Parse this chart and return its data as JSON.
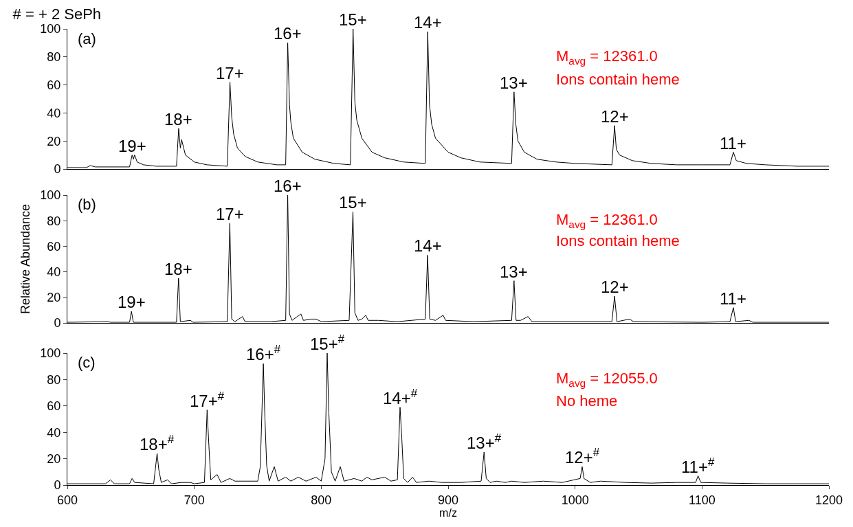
{
  "chart_data": [
    {
      "type": "line",
      "title": "# = + 2 SePh",
      "xlim": [
        600,
        1200
      ],
      "ylim": [
        0,
        100
      ],
      "yticks": [
        0,
        20,
        40,
        60,
        80,
        100
      ],
      "tick_labels": "y",
      "marker": "none",
      "line_style": "solid",
      "series": [
        {
          "color": "#000000",
          "x": [
            600,
            615,
            618,
            622,
            649,
            651,
            652,
            653,
            655,
            660,
            670,
            686,
            687.7,
            689,
            690,
            693,
            700,
            710,
            726,
            728.1,
            729.5,
            731,
            734,
            740,
            750,
            765,
            772,
            773.6,
            775,
            776,
            778,
            785,
            795,
            810,
            823,
            825.1,
            826.5,
            828,
            832,
            840,
            850,
            865,
            882,
            883.9,
            885.3,
            887,
            890,
            900,
            910,
            925,
            950,
            951.9,
            953.3,
            955,
            960,
            970,
            985,
            1000,
            1029,
            1031.1,
            1032.5,
            1035,
            1045,
            1060,
            1080,
            1100,
            1122,
            1124.7,
            1127,
            1135,
            1150,
            1175,
            1200
          ],
          "values": [
            1,
            1,
            2.5,
            1.5,
            1.5,
            10,
            7,
            10,
            5,
            3,
            2,
            2,
            29,
            15,
            21,
            10,
            5,
            3,
            2,
            62,
            37,
            25,
            15,
            9,
            5,
            3,
            3,
            90,
            46,
            34,
            22,
            12,
            7,
            4,
            3,
            100,
            48,
            35,
            22,
            12,
            8,
            5,
            4,
            98,
            46,
            32,
            22,
            12,
            8,
            5,
            4,
            55,
            32,
            20,
            12,
            7,
            5,
            4,
            3,
            31,
            14,
            10,
            6,
            4,
            3,
            3,
            3,
            12,
            6,
            4,
            3,
            2,
            2
          ]
        }
      ],
      "annotations": [
        "(a)",
        "M$_{avg}$ = 12361.0",
        "Ions contain heme",
        {
          "text": "19+",
          "x": 651,
          "y": 10
        },
        {
          "text": "18+",
          "x": 687.7,
          "y": 29
        },
        {
          "text": "17+",
          "x": 728.1,
          "y": 62
        },
        {
          "text": "16+",
          "x": 773.6,
          "y": 90
        },
        {
          "text": "15+",
          "x": 825.1,
          "y": 100
        },
        {
          "text": "14+",
          "x": 883.9,
          "y": 98
        },
        {
          "text": "13+",
          "x": 951.9,
          "y": 55
        },
        {
          "text": "12+",
          "x": 1031.1,
          "y": 31
        },
        {
          "text": "11+",
          "x": 1124.7,
          "y": 12
        }
      ]
    },
    {
      "type": "line",
      "ylabel": "Relative Abundance",
      "xlim": [
        600,
        1200
      ],
      "ylim": [
        0,
        100
      ],
      "yticks": [
        0,
        20,
        40,
        60,
        80,
        100
      ],
      "tick_labels": "y",
      "marker": "none",
      "line_style": "solid",
      "series": [
        {
          "color": "#000000",
          "x": [
            600,
            632,
            634,
            649,
            650.5,
            652,
            686,
            687.6,
            689,
            697,
            699,
            726,
            728,
            729.5,
            732,
            738,
            740,
            760,
            772,
            773.6,
            775,
            777,
            784,
            786,
            792,
            796,
            800,
            822,
            825,
            826.5,
            829,
            832,
            835,
            837,
            845,
            860,
            882,
            883.8,
            885.5,
            890,
            896,
            898,
            920,
            950,
            951.9,
            953.5,
            957,
            963,
            966,
            1000,
            1029,
            1031.1,
            1033,
            1043,
            1046,
            1100,
            1122,
            1124.7,
            1126.5,
            1137,
            1140,
            1200
          ],
          "values": [
            0.5,
            1,
            0.5,
            0.5,
            9,
            0.5,
            0.5,
            35,
            1,
            2,
            0.5,
            1,
            78,
            3,
            1,
            5,
            1,
            1,
            2,
            100,
            7,
            2,
            7,
            2,
            3,
            3,
            1,
            2,
            87,
            8,
            2,
            3,
            6,
            2,
            2,
            1,
            3,
            53,
            3,
            2,
            6,
            2,
            1,
            2,
            33,
            2,
            2,
            5,
            1,
            1,
            1,
            21,
            1,
            3,
            1,
            0.5,
            1,
            12,
            1,
            2,
            0.5,
            0.5
          ]
        }
      ],
      "annotations": [
        "(b)",
        "M$_{avg}$ = 12361.0",
        "Ions contain heme",
        {
          "text": "19+",
          "x": 650.5,
          "y": 9
        },
        {
          "text": "18+",
          "x": 687.6,
          "y": 35
        },
        {
          "text": "17+",
          "x": 728,
          "y": 78
        },
        {
          "text": "16+",
          "x": 773.6,
          "y": 100
        },
        {
          "text": "15+",
          "x": 825,
          "y": 87
        },
        {
          "text": "14+",
          "x": 883.8,
          "y": 53
        },
        {
          "text": "13+",
          "x": 951.9,
          "y": 33
        },
        {
          "text": "12+",
          "x": 1031.1,
          "y": 21
        },
        {
          "text": "11+",
          "x": 1124.7,
          "y": 12
        }
      ]
    },
    {
      "type": "line",
      "xlabel": "m/z",
      "xlim": [
        600,
        1200
      ],
      "xticks": [
        600,
        700,
        800,
        900,
        1000,
        1100,
        1200
      ],
      "ylim": [
        0,
        100
      ],
      "yticks": [
        0,
        20,
        40,
        60,
        80,
        100
      ],
      "marker": "none",
      "line_style": "solid",
      "series": [
        {
          "color": "#000000",
          "x": [
            600,
            630,
            634,
            637,
            649,
            651,
            653,
            668,
            670.7,
            672,
            674,
            679,
            682,
            690,
            697,
            700,
            708,
            710.1,
            711.5,
            713,
            718,
            721,
            728,
            732,
            740,
            750,
            752,
            754.4,
            755.5,
            757,
            759,
            763,
            766,
            772,
            776,
            782,
            788,
            796,
            800,
            803,
            804.7,
            806,
            808,
            811,
            815,
            818,
            826,
            832,
            836,
            840,
            850,
            855,
            860,
            862.1,
            863.5,
            865,
            868,
            872,
            875,
            885,
            895,
            910,
            926,
            928.3,
            930,
            933,
            938,
            945,
            950,
            960,
            975,
            990,
            1004,
            1005.6,
            1007,
            1012,
            1020,
            1040,
            1060,
            1080,
            1095,
            1096.9,
            1099,
            1120,
            1150,
            1175,
            1200
          ],
          "values": [
            1,
            1,
            4,
            1,
            1,
            5,
            2,
            1,
            24,
            12,
            2,
            4,
            1,
            2,
            2,
            1,
            2,
            57,
            30,
            4,
            8,
            2,
            5,
            3,
            3,
            3,
            14,
            92,
            55,
            15,
            3,
            14,
            3,
            6,
            3,
            6,
            3,
            6,
            3,
            20,
            100,
            55,
            10,
            3,
            14,
            3,
            5,
            3,
            6,
            4,
            6,
            3,
            4,
            59,
            35,
            5,
            2,
            6,
            2,
            3,
            2,
            2,
            3,
            25,
            5,
            2,
            3,
            2,
            3,
            2,
            3,
            2,
            5,
            14,
            5,
            2,
            3,
            2,
            1.5,
            2,
            2,
            7,
            2,
            1.5,
            1,
            1,
            1
          ]
        }
      ],
      "annotations": [
        "(c)",
        "M$_{avg}$ = 12055.0",
        "No heme",
        {
          "text": "18+$^{#}$",
          "x": 670.7,
          "y": 24
        },
        {
          "text": "17+$^{#}$",
          "x": 710.1,
          "y": 57
        },
        {
          "text": "16+$^{#}$",
          "x": 754.4,
          "y": 92
        },
        {
          "text": "15+$^{#}$",
          "x": 804.7,
          "y": 100
        },
        {
          "text": "14+$^{#}$",
          "x": 862.1,
          "y": 59
        },
        {
          "text": "13+$^{#}$",
          "x": 928.3,
          "y": 25
        },
        {
          "text": "12+$^{#}$",
          "x": 1005.6,
          "y": 14
        },
        {
          "text": "11+$^{#}$",
          "x": 1096.9,
          "y": 7
        }
      ]
    }
  ]
}
